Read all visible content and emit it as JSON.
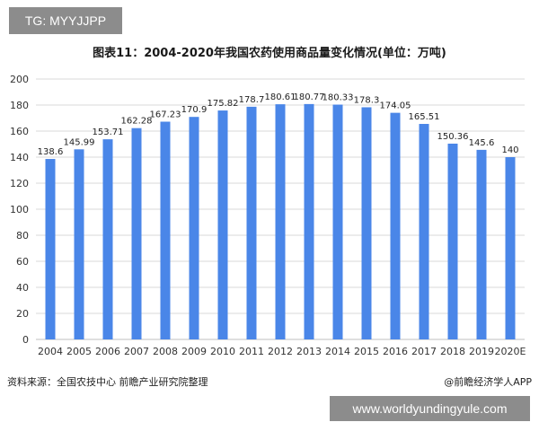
{
  "overlay": {
    "top_tag": "TG: MYYJJPP",
    "bottom_tag": "www.worldyundingyule.com"
  },
  "chart_data": {
    "type": "bar",
    "title": "图表11：2004-2020年我国农药使用商品量变化情况(单位：万吨)",
    "categories": [
      "2004",
      "2005",
      "2006",
      "2007",
      "2008",
      "2009",
      "2010",
      "2011",
      "2012",
      "2013",
      "2014",
      "2015",
      "2016",
      "2017",
      "2018",
      "2019",
      "2020E"
    ],
    "values": [
      138.6,
      145.99,
      153.71,
      162.28,
      167.23,
      170.9,
      175.82,
      178.7,
      180.61,
      180.77,
      180.33,
      178.3,
      174.05,
      165.51,
      150.36,
      145.6,
      140
    ],
    "data_labels": [
      "138.6",
      "145.99",
      "153.71",
      "162.28",
      "167.23",
      "170.9",
      "175.82",
      "178.7",
      "180.61",
      "180.77",
      "180.33",
      "178.3",
      "174.05",
      "165.51",
      "150.36",
      "145.6",
      "140"
    ],
    "ylim": [
      0,
      200
    ],
    "yticks": [
      "0",
      "20",
      "40",
      "60",
      "80",
      "100",
      "120",
      "140",
      "160",
      "180",
      "200"
    ],
    "xlabel": "",
    "ylabel": "",
    "grid": true,
    "legend": "none",
    "bar_color": "#4a86e8"
  },
  "footer": {
    "source": "资料来源：全国农技中心 前瞻产业研究院整理",
    "brand": "@前瞻经济学人APP"
  }
}
